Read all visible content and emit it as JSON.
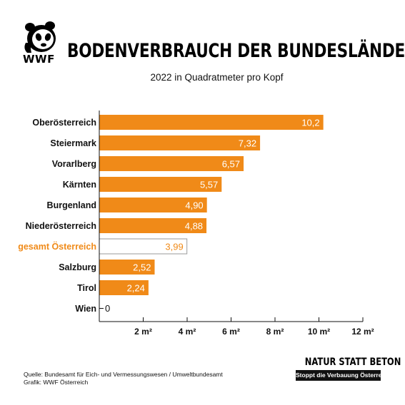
{
  "header": {
    "logo_text": "WWF",
    "title": "BODENVERBRAUCH DER BUNDESLÄNDER",
    "subtitle": "2022 in Quadratmeter pro Kopf"
  },
  "colors": {
    "bar": "#f08a18",
    "highlight_label": "#f08a18",
    "total_bar_fill": "#ffffff",
    "total_bar_border": "#9a9a9a"
  },
  "chart_data": {
    "type": "bar",
    "orientation": "horizontal",
    "categories": [
      "Oberösterreich",
      "Steiermark",
      "Vorarlberg",
      "Kärnten",
      "Burgenland",
      "Niederösterreich",
      "gesamt Österreich",
      "Salzburg",
      "Tirol",
      "Wien"
    ],
    "values": [
      10.2,
      7.32,
      6.57,
      5.57,
      4.9,
      4.88,
      3.99,
      2.52,
      2.24,
      0
    ],
    "value_labels": [
      "10,2",
      "7,32",
      "6,57",
      "5,57",
      "4,90",
      "4,88",
      "3,99",
      "2,52",
      "2,24",
      "0"
    ],
    "highlight_category": "gesamt Österreich",
    "xlim": [
      0,
      12
    ],
    "xticks": [
      2,
      4,
      6,
      8,
      10,
      12
    ],
    "xtick_labels": [
      "2 m²",
      "4 m²",
      "6 m²",
      "8 m²",
      "10 m²",
      "12 m²"
    ],
    "grid": false
  },
  "footer": {
    "source_line1": "Quelle: Bundesamt für Eich- und Vermessungswesen / Umweltbundesamt",
    "source_line2": "Grafik: WWF Österreich",
    "slogan": "NATUR STATT BETON",
    "slogan_sub": "Stoppt die Verbauung Österreichs!"
  }
}
